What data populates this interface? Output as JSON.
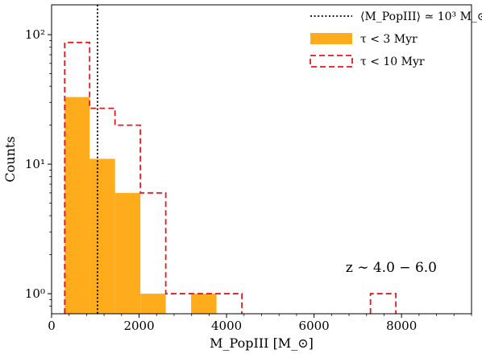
{
  "chart_data": {
    "type": "histogram",
    "xlabel": "M_PopIII [M_⊙]",
    "ylabel": "Counts",
    "x_range": [
      0,
      9600
    ],
    "y_range": [
      0.7,
      170
    ],
    "y_scale": "log",
    "x_ticks": [
      0,
      2000,
      4000,
      6000,
      8000
    ],
    "x_tick_labels": [
      "0",
      "2000",
      "4000",
      "6000",
      "8000"
    ],
    "y_ticks": [
      1,
      10,
      100
    ],
    "y_tick_labels": [
      "10⁰",
      "10¹",
      "10²"
    ],
    "grid": false,
    "legend_position": "top-right",
    "annotation": "z ∼ 4.0 − 6.0",
    "vline": {
      "x": 1050,
      "label": "⟨M_PopIII⟩ ≃ 10³ M_⊙",
      "style": "dotted",
      "color": "#000000"
    },
    "series": [
      {
        "name": "τ < 3 Myr",
        "style": "filled",
        "color": "#FFAC1C",
        "bins": [
          {
            "x0": 300,
            "x1": 870,
            "count": 33
          },
          {
            "x0": 870,
            "x1": 1450,
            "count": 11
          },
          {
            "x0": 1450,
            "x1": 2030,
            "count": 6
          },
          {
            "x0": 2030,
            "x1": 2610,
            "count": 1
          },
          {
            "x0": 3190,
            "x1": 3770,
            "count": 1
          }
        ]
      },
      {
        "name": "τ < 10 Myr",
        "style": "step-dashed",
        "color": "#E8161E",
        "bins": [
          {
            "x0": 300,
            "x1": 870,
            "count": 87
          },
          {
            "x0": 870,
            "x1": 1450,
            "count": 27
          },
          {
            "x0": 1450,
            "x1": 2030,
            "count": 20
          },
          {
            "x0": 2030,
            "x1": 2610,
            "count": 6
          },
          {
            "x0": 2610,
            "x1": 3190,
            "count": 1
          },
          {
            "x0": 3190,
            "x1": 3770,
            "count": 1
          },
          {
            "x0": 3770,
            "x1": 4350,
            "count": 1
          },
          {
            "x0": 7290,
            "x1": 7870,
            "count": 1
          }
        ]
      }
    ]
  }
}
